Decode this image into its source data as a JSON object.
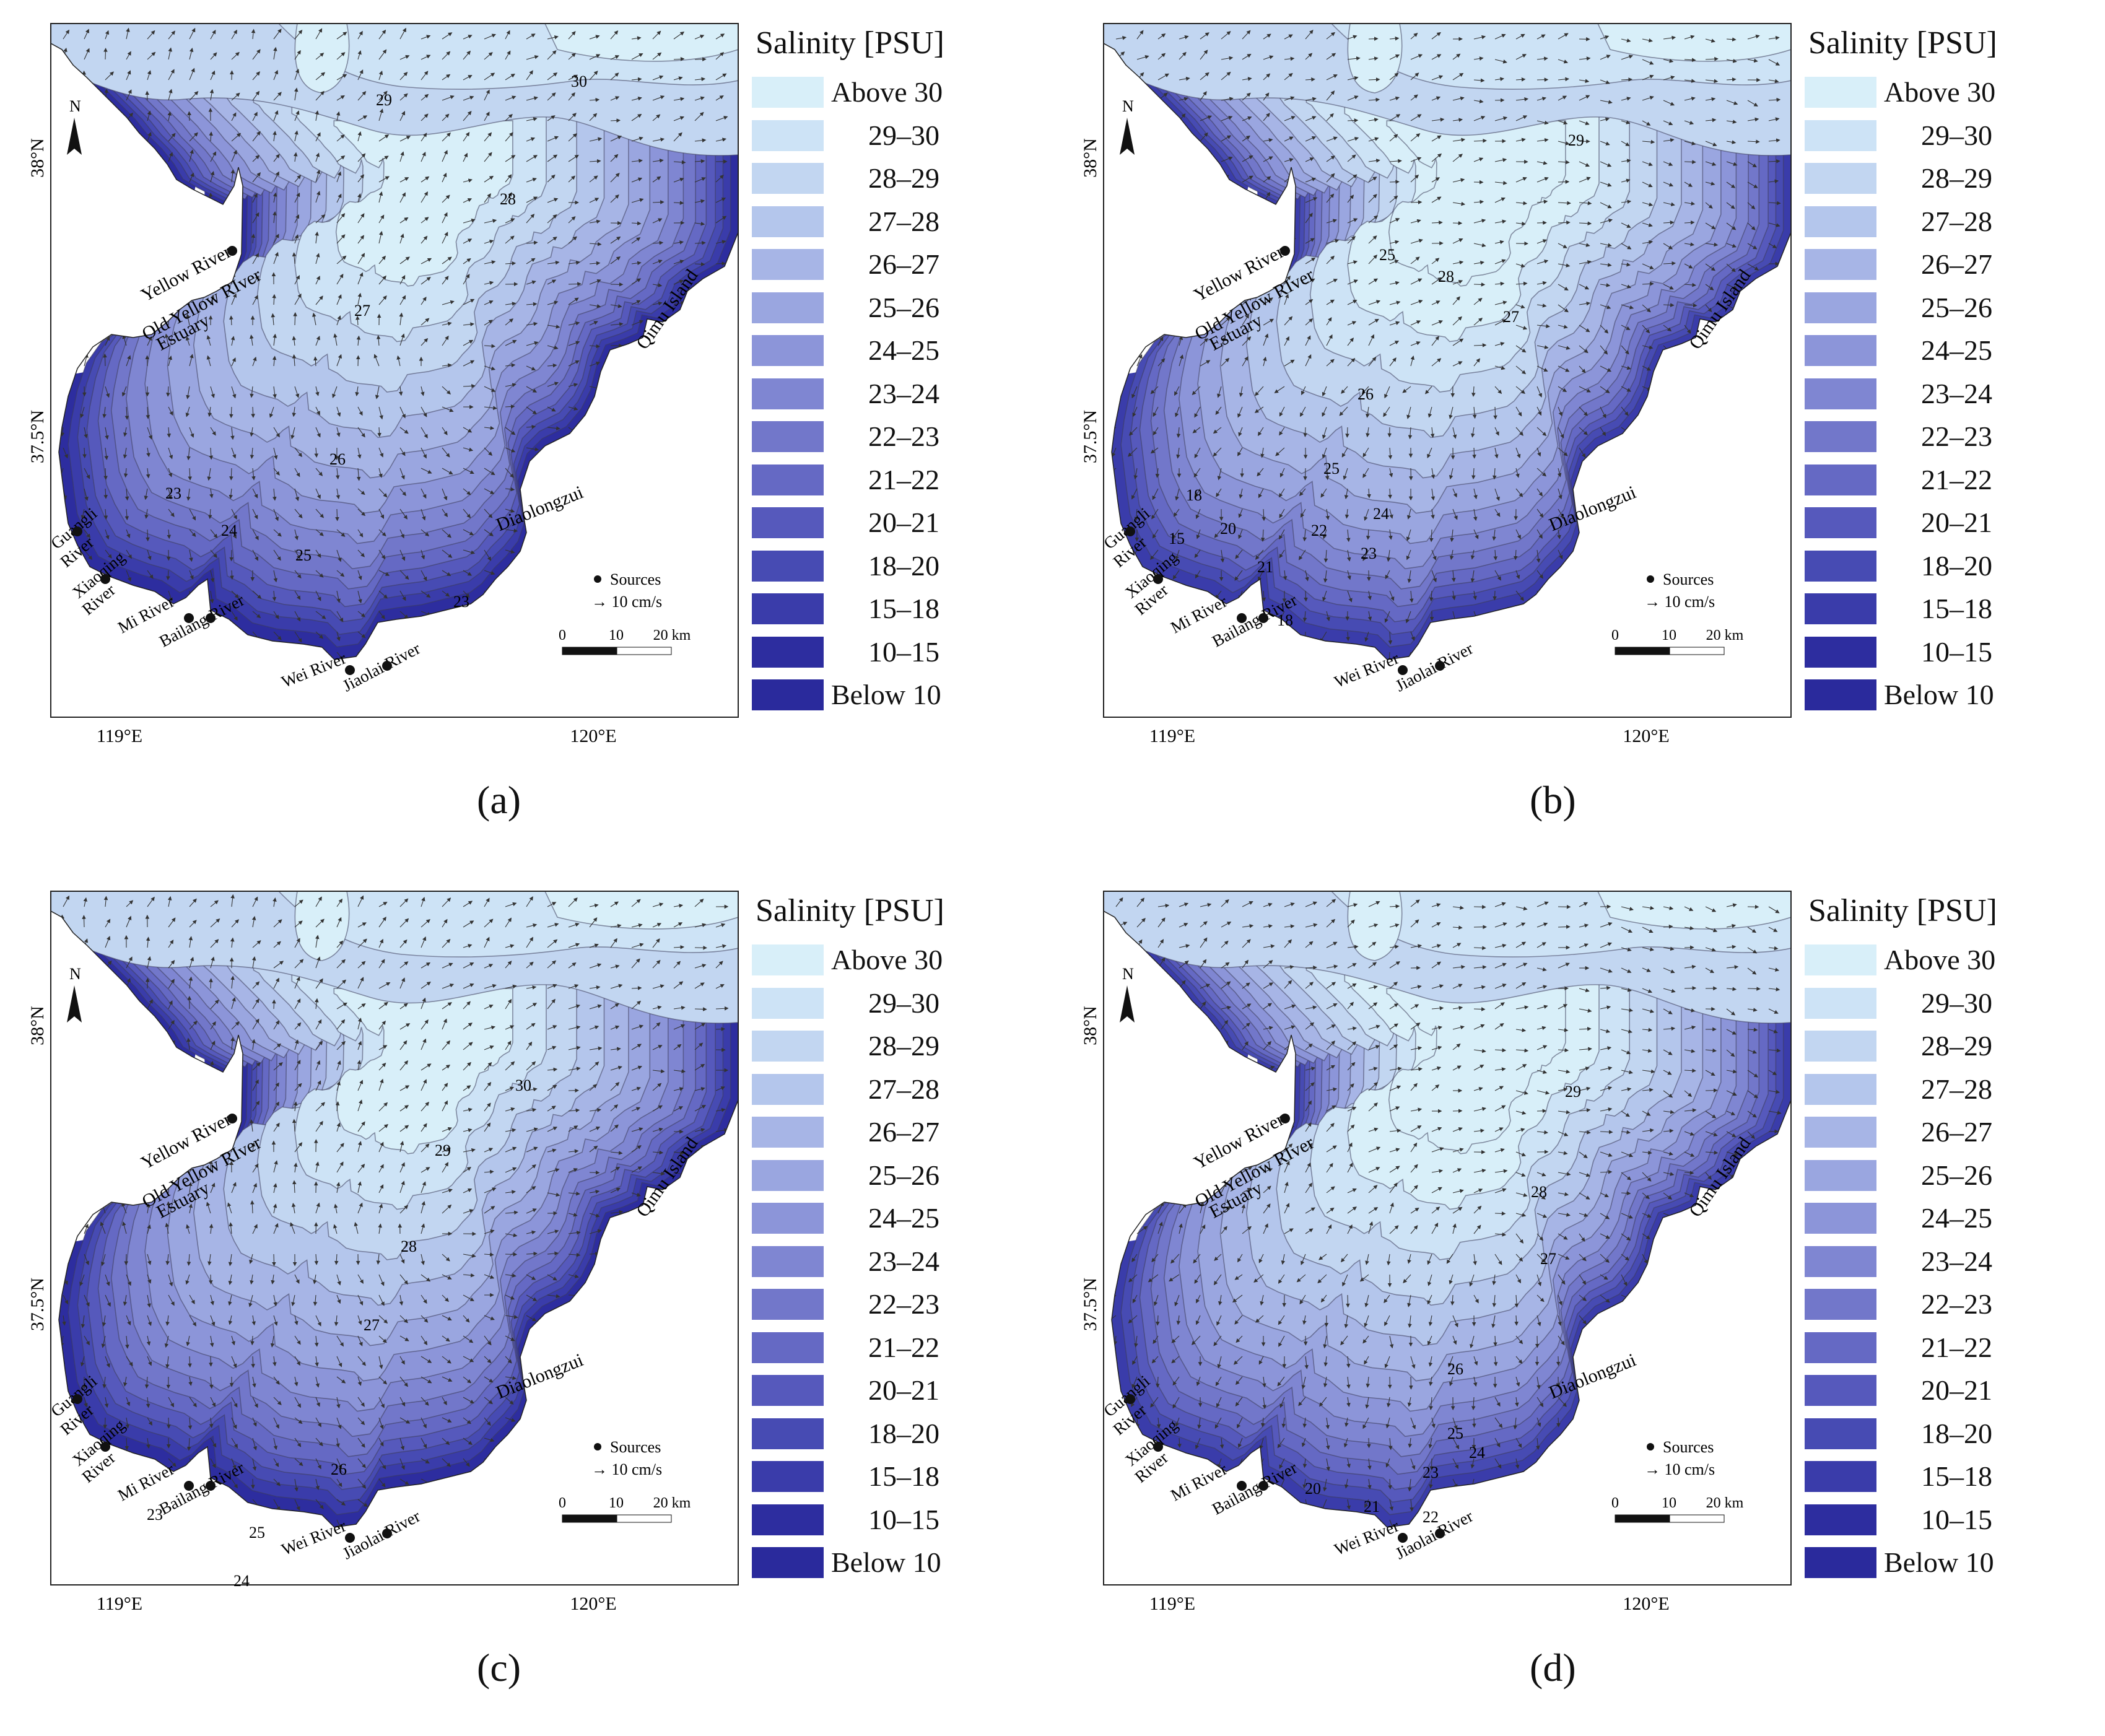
{
  "colors": {
    "scale": [
      "#d8eff9",
      "#cde3f6",
      "#c2d6f1",
      "#b4c6ec",
      "#a7b5e6",
      "#9aa6e0",
      "#8c95d9",
      "#7f86d2",
      "#7277ca",
      "#6569c4",
      "#5659bc",
      "#474bb3",
      "#3a3caa",
      "#2d2d9f"
    ],
    "land": "#ffffff",
    "contour": "#3c3c5a",
    "arrow": "#333333"
  },
  "figure": {
    "panels": [
      {
        "id": "a",
        "label": "(a)",
        "legend": {
          "title": "Salinity [PSU]",
          "classes": [
            "Above 30",
            "29–30",
            "28–29",
            "27–28",
            "26–27",
            "25–26",
            "24–25",
            "23–24",
            "22–23",
            "21–22",
            "20–21",
            "18–20",
            "15–18",
            "10–15",
            "Below 10"
          ]
        },
        "axes": {
          "x_ticks": [
            "119°E",
            "120°E"
          ],
          "y_ticks": [
            "38°N",
            "37.5°N"
          ]
        },
        "contour_labels": [
          "29",
          "30",
          "28",
          "27",
          "26",
          "25",
          "24",
          "23",
          "23"
        ],
        "place_labels": [
          "Yellow River",
          "Old Yellow RIver",
          "Estuary",
          "Qimu Island",
          "Diaolongzui",
          "Guangli",
          "River",
          "Xiaoqing",
          "River",
          "Mi River",
          "Bailang River",
          "Wei River",
          "Jiaolai River"
        ],
        "map_legend": {
          "sources": "Sources",
          "current": "→ 10 cm/s",
          "scale_ticks": [
            "0",
            "10",
            "20 km"
          ]
        },
        "north": "N"
      },
      {
        "id": "b",
        "label": "(b)",
        "legend": {
          "title": "Salinity [PSU]",
          "classes": [
            "Above 30",
            "29–30",
            "28–29",
            "27–28",
            "26–27",
            "25–26",
            "24–25",
            "23–24",
            "22–23",
            "21–22",
            "20–21",
            "18–20",
            "15–18",
            "10–15",
            "Below 10"
          ]
        },
        "axes": {
          "x_ticks": [
            "119°E",
            "120°E"
          ],
          "y_ticks": [
            "38°N",
            "37.5°N"
          ]
        },
        "contour_labels": [
          "29",
          "25",
          "28",
          "27",
          "26",
          "25",
          "24",
          "23",
          "22",
          "21",
          "20",
          "18",
          "15",
          "18"
        ],
        "place_labels": [
          "Yellow River",
          "Old Yellow RIver",
          "Estuary",
          "Qimu Island",
          "Diaolongzui",
          "Guangli",
          "River",
          "Xiaoqing",
          "River",
          "Mi River",
          "Bailang River",
          "Wei River",
          "Jiaolai River"
        ],
        "map_legend": {
          "sources": "Sources",
          "current": "→ 10 cm/s",
          "scale_ticks": [
            "0",
            "10",
            "20 km"
          ]
        },
        "north": "N"
      },
      {
        "id": "c",
        "label": "(c)",
        "legend": {
          "title": "Salinity [PSU]",
          "classes": [
            "Above 30",
            "29–30",
            "28–29",
            "27–28",
            "26–27",
            "25–26",
            "24–25",
            "23–24",
            "22–23",
            "21–22",
            "20–21",
            "18–20",
            "15–18",
            "10–15",
            "Below 10"
          ]
        },
        "axes": {
          "x_ticks": [
            "119°E",
            "120°E"
          ],
          "y_ticks": [
            "38°N",
            "37.5°N"
          ]
        },
        "contour_labels": [
          "30",
          "29",
          "28",
          "27",
          "26",
          "25",
          "24",
          "23"
        ],
        "place_labels": [
          "Yellow River",
          "Old Yellow RIver",
          "Estuary",
          "Qimu Island",
          "Diaolongzui",
          "Guangli",
          "River",
          "Xiaoqing",
          "River",
          "Mi River",
          "Bailang River",
          "Wei River",
          "Jiaolai River"
        ],
        "map_legend": {
          "sources": "Sources",
          "current": "→ 10 cm/s",
          "scale_ticks": [
            "0",
            "10",
            "20 km"
          ]
        },
        "north": "N"
      },
      {
        "id": "d",
        "label": "(d)",
        "legend": {
          "title": "Salinity [PSU]",
          "classes": [
            "Above 30",
            "29–30",
            "28–29",
            "27–28",
            "26–27",
            "25–26",
            "24–25",
            "23–24",
            "22–23",
            "21–22",
            "20–21",
            "18–20",
            "15–18",
            "10–15",
            "Below 10"
          ]
        },
        "axes": {
          "x_ticks": [
            "119°E",
            "120°E"
          ],
          "y_ticks": [
            "38°N",
            "37.5°N"
          ]
        },
        "contour_labels": [
          "29",
          "28",
          "27",
          "26",
          "25",
          "24",
          "23",
          "22",
          "21",
          "20"
        ],
        "place_labels": [
          "Yellow River",
          "Old Yellow RIver",
          "Estuary",
          "Qimu Island",
          "Diaolongzui",
          "Guangli",
          "River",
          "Xiaoqing",
          "River",
          "Mi River",
          "Bailang River",
          "Wei River",
          "Jiaolai River"
        ],
        "map_legend": {
          "sources": "Sources",
          "current": "→ 10 cm/s",
          "scale_ticks": [
            "0",
            "10",
            "20 km"
          ]
        },
        "north": "N"
      }
    ]
  }
}
